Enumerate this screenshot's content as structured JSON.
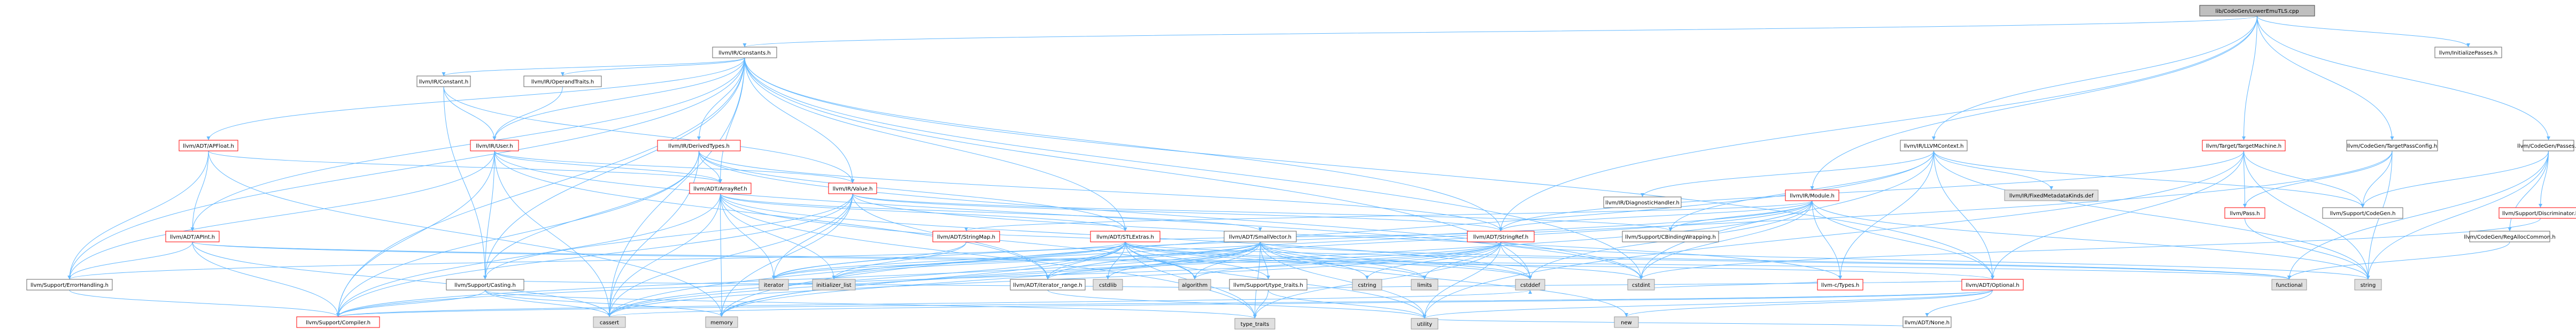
{
  "diagram": {
    "title": "lib/CodeGen/LowerEmuTLS.cpp include dependency graph",
    "nodes": [
      {
        "id": "root",
        "label": "lib/CodeGen/LowerEmuTLS.cpp",
        "style": "root"
      },
      {
        "id": "constants",
        "label": "llvm/IR/Constants.h",
        "style": "normal"
      },
      {
        "id": "initpasses",
        "label": "llvm/InitializePasses.h",
        "style": "normal"
      },
      {
        "id": "llvmctx",
        "label": "llvm/IR/LLVMContext.h",
        "style": "normal"
      },
      {
        "id": "tm",
        "label": "llvm/Target/TargetMachine.h",
        "style": "red"
      },
      {
        "id": "tpc",
        "label": "llvm/CodeGen/TargetPassConfig.h",
        "style": "normal"
      },
      {
        "id": "cgpasses",
        "label": "llvm/CodeGen/Passes.h",
        "style": "normal"
      },
      {
        "id": "apfloat",
        "label": "llvm/ADT/APFloat.h",
        "style": "red"
      },
      {
        "id": "irconstant",
        "label": "llvm/IR/Constant.h",
        "style": "normal"
      },
      {
        "id": "operandtraits",
        "label": "llvm/IR/OperandTraits.h",
        "style": "normal"
      },
      {
        "id": "derivedtypes",
        "label": "llvm/IR/DerivedTypes.h",
        "style": "red"
      },
      {
        "id": "user",
        "label": "llvm/IR/User.h",
        "style": "red"
      },
      {
        "id": "arrayref",
        "label": "llvm/ADT/ArrayRef.h",
        "style": "red"
      },
      {
        "id": "value",
        "label": "llvm/IR/Value.h",
        "style": "red"
      },
      {
        "id": "apint",
        "label": "llvm/ADT/APInt.h",
        "style": "red"
      },
      {
        "id": "diaghandler",
        "label": "llvm/IR/DiagnosticHandler.h",
        "style": "normal"
      },
      {
        "id": "module",
        "label": "llvm/IR/Module.h",
        "style": "red"
      },
      {
        "id": "fpkinds",
        "label": "llvm/IR/FixedMetadataKinds.def",
        "style": "gray"
      },
      {
        "id": "pass",
        "label": "llvm/Pass.h",
        "style": "red"
      },
      {
        "id": "supcodegen",
        "label": "llvm/Support/CodeGen.h",
        "style": "normal"
      },
      {
        "id": "discriminator",
        "label": "llvm/Support/Discriminator.h",
        "style": "red"
      },
      {
        "id": "regalloc",
        "label": "llvm/CodeGen/RegAllocCommon.h",
        "style": "normal"
      },
      {
        "id": "stringmap",
        "label": "llvm/ADT/StringMap.h",
        "style": "red"
      },
      {
        "id": "stlextras",
        "label": "llvm/ADT/STLExtras.h",
        "style": "red"
      },
      {
        "id": "smallvector",
        "label": "llvm/ADT/SmallVector.h",
        "style": "normal"
      },
      {
        "id": "stringref",
        "label": "llvm/ADT/StringRef.h",
        "style": "red"
      },
      {
        "id": "cbinding",
        "label": "llvm/Support/CBindingWrapping.h",
        "style": "normal"
      },
      {
        "id": "optional",
        "label": "llvm/ADT/Optional.h",
        "style": "red"
      },
      {
        "id": "ctypes",
        "label": "llvm-c/Types.h",
        "style": "red"
      },
      {
        "id": "errorhandling",
        "label": "llvm/Support/ErrorHandling.h",
        "style": "normal"
      },
      {
        "id": "casting",
        "label": "llvm/Support/Casting.h",
        "style": "normal"
      },
      {
        "id": "iterrange",
        "label": "llvm/ADT/iterator_range.h",
        "style": "normal"
      },
      {
        "id": "typetraits",
        "label": "llvm/Support/type_traits.h",
        "style": "normal"
      },
      {
        "id": "none",
        "label": "llvm/ADT/None.h",
        "style": "normal"
      },
      {
        "id": "compiler",
        "label": "llvm/Support/Compiler.h",
        "style": "red"
      },
      {
        "id": "cassert",
        "label": "cassert",
        "style": "gray"
      },
      {
        "id": "memory",
        "label": "memory",
        "style": "gray"
      },
      {
        "id": "iterator",
        "label": "iterator",
        "style": "gray"
      },
      {
        "id": "initlist",
        "label": "initializer_list",
        "style": "gray"
      },
      {
        "id": "cstdlib",
        "label": "cstdlib",
        "style": "gray"
      },
      {
        "id": "algorithm",
        "label": "algorithm",
        "style": "gray"
      },
      {
        "id": "cstring",
        "label": "cstring",
        "style": "gray"
      },
      {
        "id": "limits",
        "label": "limits",
        "style": "gray"
      },
      {
        "id": "cstddef",
        "label": "cstddef",
        "style": "gray"
      },
      {
        "id": "new",
        "label": "new",
        "style": "gray"
      },
      {
        "id": "cstdint",
        "label": "cstdint",
        "style": "gray"
      },
      {
        "id": "functional",
        "label": "functional",
        "style": "gray"
      },
      {
        "id": "string",
        "label": "string",
        "style": "gray"
      },
      {
        "id": "type_traits",
        "label": "type_traits",
        "style": "gray"
      },
      {
        "id": "utility",
        "label": "utility",
        "style": "gray"
      }
    ],
    "edges": [
      [
        "root",
        "constants"
      ],
      [
        "root",
        "initpasses"
      ],
      [
        "root",
        "llvmctx"
      ],
      [
        "root",
        "tm"
      ],
      [
        "root",
        "tpc"
      ],
      [
        "root",
        "cgpasses"
      ],
      [
        "root",
        "module"
      ],
      [
        "root",
        "stringref"
      ],
      [
        "constants",
        "apfloat"
      ],
      [
        "constants",
        "irconstant"
      ],
      [
        "constants",
        "operandtraits"
      ],
      [
        "constants",
        "derivedtypes"
      ],
      [
        "constants",
        "user"
      ],
      [
        "constants",
        "arrayref"
      ],
      [
        "constants",
        "value"
      ],
      [
        "constants",
        "apint"
      ],
      [
        "constants",
        "stlextras"
      ],
      [
        "constants",
        "stringref"
      ],
      [
        "constants",
        "optional"
      ],
      [
        "constants",
        "casting"
      ],
      [
        "constants",
        "errorhandling"
      ],
      [
        "constants",
        "compiler"
      ],
      [
        "constants",
        "cassert"
      ],
      [
        "constants",
        "cstddef"
      ],
      [
        "constants",
        "cstdint"
      ],
      [
        "llvmctx",
        "diaghandler"
      ],
      [
        "llvmctx",
        "fpkinds"
      ],
      [
        "llvmctx",
        "supcodegen"
      ],
      [
        "llvmctx",
        "optional"
      ],
      [
        "llvmctx",
        "ctypes"
      ],
      [
        "llvmctx",
        "cbinding"
      ],
      [
        "llvmctx",
        "cstdint"
      ],
      [
        "llvmctx",
        "memory"
      ],
      [
        "llvmctx",
        "string"
      ],
      [
        "tm",
        "pass"
      ],
      [
        "tm",
        "supcodegen"
      ],
      [
        "tm",
        "optional"
      ],
      [
        "tm",
        "stringref"
      ],
      [
        "tm",
        "string"
      ],
      [
        "tm",
        "utility"
      ],
      [
        "tpc",
        "pass"
      ],
      [
        "tpc",
        "supcodegen"
      ],
      [
        "tpc",
        "cassert"
      ],
      [
        "tpc",
        "string"
      ],
      [
        "cgpasses",
        "supcodegen"
      ],
      [
        "cgpasses",
        "discriminator"
      ],
      [
        "cgpasses",
        "regalloc"
      ],
      [
        "cgpasses",
        "functional"
      ],
      [
        "cgpasses",
        "string"
      ],
      [
        "apfloat",
        "apint"
      ],
      [
        "apfloat",
        "arrayref"
      ],
      [
        "apfloat",
        "errorhandling"
      ],
      [
        "apfloat",
        "memory"
      ],
      [
        "irconstant",
        "user"
      ],
      [
        "irconstant",
        "value"
      ],
      [
        "irconstant",
        "casting"
      ],
      [
        "operandtraits",
        "user"
      ],
      [
        "derivedtypes",
        "arrayref"
      ],
      [
        "derivedtypes",
        "stlextras"
      ],
      [
        "derivedtypes",
        "stringref"
      ],
      [
        "derivedtypes",
        "casting"
      ],
      [
        "derivedtypes",
        "compiler"
      ],
      [
        "derivedtypes",
        "cassert"
      ],
      [
        "derivedtypes",
        "cstdint"
      ],
      [
        "user",
        "value"
      ],
      [
        "user",
        "arrayref"
      ],
      [
        "user",
        "iterrange"
      ],
      [
        "user",
        "casting"
      ],
      [
        "user",
        "compiler"
      ],
      [
        "user",
        "errorhandling"
      ],
      [
        "user",
        "cassert"
      ],
      [
        "user",
        "cstdint"
      ],
      [
        "arrayref",
        "stlextras"
      ],
      [
        "arrayref",
        "smallvector"
      ],
      [
        "arrayref",
        "compiler"
      ],
      [
        "arrayref",
        "algorithm"
      ],
      [
        "arrayref",
        "cassert"
      ],
      [
        "arrayref",
        "cstddef"
      ],
      [
        "arrayref",
        "initlist"
      ],
      [
        "arrayref",
        "iterator"
      ],
      [
        "arrayref",
        "memory"
      ],
      [
        "arrayref",
        "type_traits"
      ],
      [
        "arrayref",
        "vector"
      ],
      [
        "value",
        "stringref"
      ],
      [
        "value",
        "iterrange"
      ],
      [
        "value",
        "casting"
      ],
      [
        "value",
        "ctypes"
      ],
      [
        "value",
        "cbinding"
      ],
      [
        "value",
        "compiler"
      ],
      [
        "value",
        "cassert"
      ],
      [
        "value",
        "iterator"
      ],
      [
        "value",
        "memory"
      ],
      [
        "apint",
        "errorhandling"
      ],
      [
        "apint",
        "compiler"
      ],
      [
        "apint",
        "cassert"
      ],
      [
        "apint",
        "functional"
      ],
      [
        "apint",
        "optional"
      ],
      [
        "module",
        "stringmap"
      ],
      [
        "module",
        "stringref"
      ],
      [
        "module",
        "iterrange"
      ],
      [
        "module",
        "optional"
      ],
      [
        "module",
        "cbinding"
      ],
      [
        "module",
        "ctypes"
      ],
      [
        "module",
        "cstddef"
      ],
      [
        "module",
        "cstdint"
      ],
      [
        "module",
        "iterator"
      ],
      [
        "module",
        "memory"
      ],
      [
        "module",
        "string"
      ],
      [
        "module",
        "vector"
      ],
      [
        "stringmap",
        "stlextras"
      ],
      [
        "stringmap",
        "iterator"
      ],
      [
        "stringmap",
        "initlist"
      ],
      [
        "stlextras",
        "iterrange"
      ],
      [
        "stlextras",
        "typetraits"
      ],
      [
        "stlextras",
        "errorhandling"
      ],
      [
        "stlextras",
        "algorithm"
      ],
      [
        "stlextras",
        "cassert"
      ],
      [
        "stlextras",
        "cstddef"
      ],
      [
        "stlextras",
        "cstdint"
      ],
      [
        "stlextras",
        "cstdlib"
      ],
      [
        "stlextras",
        "functional"
      ],
      [
        "stlextras",
        "initlist"
      ],
      [
        "stlextras",
        "iterator"
      ],
      [
        "stlextras",
        "limits"
      ],
      [
        "stlextras",
        "memory"
      ],
      [
        "stlextras",
        "tuple"
      ],
      [
        "stlextras",
        "type_traits"
      ],
      [
        "stlextras",
        "utility"
      ],
      [
        "smallvector",
        "typetraits"
      ],
      [
        "smallvector",
        "compiler"
      ],
      [
        "smallvector",
        "algorithm"
      ],
      [
        "smallvector",
        "cassert"
      ],
      [
        "smallvector",
        "cstddef"
      ],
      [
        "smallvector",
        "cstdlib"
      ],
      [
        "smallvector",
        "cstring"
      ],
      [
        "smallvector",
        "functional"
      ],
      [
        "smallvector",
        "initlist"
      ],
      [
        "smallvector",
        "iterator"
      ],
      [
        "smallvector",
        "limits"
      ],
      [
        "smallvector",
        "memory"
      ],
      [
        "smallvector",
        "new"
      ],
      [
        "smallvector",
        "type_traits"
      ],
      [
        "smallvector",
        "utility"
      ],
      [
        "stringref",
        "stlextras"
      ],
      [
        "stringref",
        "iterrange"
      ],
      [
        "stringref",
        "compiler"
      ],
      [
        "stringref",
        "algorithm"
      ],
      [
        "stringref",
        "cassert"
      ],
      [
        "stringref",
        "cstddef"
      ],
      [
        "stringref",
        "cstring"
      ],
      [
        "stringref",
        "limits"
      ],
      [
        "stringref",
        "string"
      ],
      [
        "stringref",
        "type_traits"
      ],
      [
        "stringref",
        "utility"
      ],
      [
        "optional",
        "none"
      ],
      [
        "optional",
        "typetraits"
      ],
      [
        "optional",
        "compiler"
      ],
      [
        "optional",
        "cassert"
      ],
      [
        "optional",
        "new"
      ],
      [
        "optional",
        "utility"
      ],
      [
        "ctypes",
        "cstdint"
      ],
      [
        "errorhandling",
        "compiler"
      ],
      [
        "casting",
        "typetraits"
      ],
      [
        "casting",
        "compiler"
      ],
      [
        "casting",
        "cassert"
      ],
      [
        "casting",
        "memory"
      ],
      [
        "casting",
        "type_traits"
      ],
      [
        "iterrange",
        "utility"
      ],
      [
        "typetraits",
        "type_traits"
      ],
      [
        "typetraits",
        "utility"
      ],
      [
        "compiler",
        "cstddef"
      ],
      [
        "none",
        "utility"
      ],
      [
        "pass",
        "string"
      ],
      [
        "discriminator",
        "cstdint"
      ],
      [
        "regalloc",
        "functional"
      ]
    ]
  }
}
